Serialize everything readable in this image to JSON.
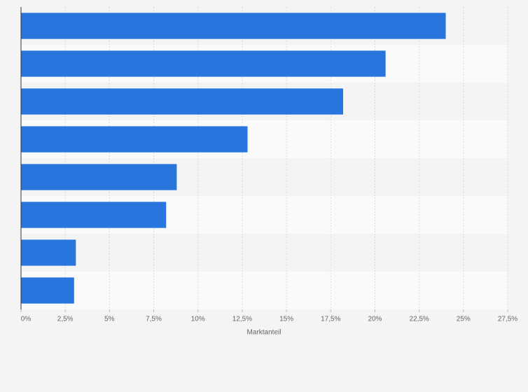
{
  "chart_data": {
    "type": "bar",
    "orientation": "horizontal",
    "x_label": "Marktanteil",
    "categories": [
      null,
      null,
      null,
      null,
      null,
      null,
      null,
      null
    ],
    "values": [
      24.0,
      20.6,
      18.2,
      12.8,
      8.8,
      8.2,
      3.1,
      3.0
    ],
    "color": "#2876dd",
    "xlim": [
      0,
      27.5
    ],
    "xticks": [
      {
        "value": 0,
        "label": "0%"
      },
      {
        "value": 2.5,
        "label": "2,5%"
      },
      {
        "value": 5,
        "label": "5%"
      },
      {
        "value": 7.5,
        "label": "7,5%"
      },
      {
        "value": 10,
        "label": "10%"
      },
      {
        "value": 12.5,
        "label": "12,5%"
      },
      {
        "value": 15,
        "label": "15%"
      },
      {
        "value": 17.5,
        "label": "17,5%"
      },
      {
        "value": 20,
        "label": "20%"
      },
      {
        "value": 22.5,
        "label": "22,5%"
      },
      {
        "value": 25,
        "label": "25%"
      },
      {
        "value": 27.5,
        "label": "27,5%"
      }
    ],
    "grid": true
  }
}
